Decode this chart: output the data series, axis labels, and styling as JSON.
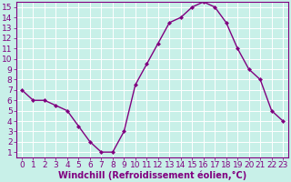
{
  "x": [
    0,
    1,
    2,
    3,
    4,
    5,
    6,
    7,
    8,
    9,
    10,
    11,
    12,
    13,
    14,
    15,
    16,
    17,
    18,
    19,
    20,
    21,
    22,
    23
  ],
  "y": [
    7,
    6,
    6,
    5.5,
    5,
    3.5,
    2,
    1,
    1,
    3,
    7.5,
    9.5,
    11.5,
    13.5,
    14,
    15,
    15.5,
    15,
    13.5,
    11,
    9,
    8,
    5,
    4
  ],
  "line_color": "#800080",
  "marker": "D",
  "marker_size": 2,
  "bg_color": "#c8f0e8",
  "grid_color": "#ffffff",
  "xlabel": "Windchill (Refroidissement éolien,°C)",
  "xlabel_color": "#800080",
  "tick_color": "#800080",
  "spine_color": "#800080",
  "ylim": [
    0.5,
    15.5
  ],
  "xlim": [
    -0.5,
    23.5
  ],
  "yticks": [
    1,
    2,
    3,
    4,
    5,
    6,
    7,
    8,
    9,
    10,
    11,
    12,
    13,
    14,
    15
  ],
  "xticks": [
    0,
    1,
    2,
    3,
    4,
    5,
    6,
    7,
    8,
    9,
    10,
    11,
    12,
    13,
    14,
    15,
    16,
    17,
    18,
    19,
    20,
    21,
    22,
    23
  ],
  "font_size": 6.5,
  "xlabel_fontsize": 7,
  "linewidth": 1.0
}
